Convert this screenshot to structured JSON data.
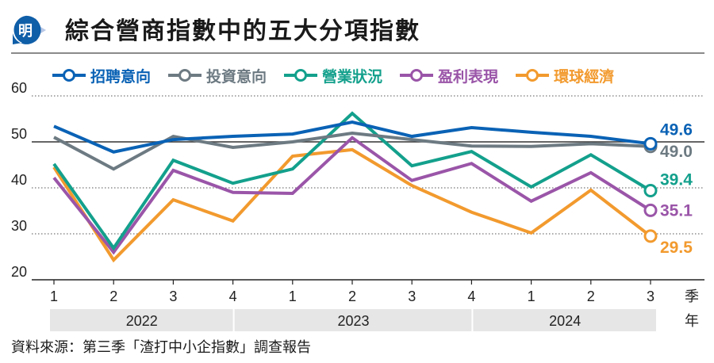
{
  "header": {
    "logo_char": "明",
    "title": "綜合營商指數中的五大分項指數"
  },
  "colors": {
    "logo_blue": "#0f5ea8",
    "logo_light": "#b9c8e6",
    "zero_line": "#333333",
    "grid": "#555555",
    "year_band": "#e6e6e6"
  },
  "chart_data": {
    "type": "line",
    "title": "綜合營商指數中的五大分項指數",
    "xlabel": "季",
    "xlabel_year": "年",
    "ylabel": "",
    "ylim": [
      20,
      60
    ],
    "yticks": [
      20,
      30,
      40,
      50,
      60
    ],
    "reference_line": 50,
    "grid": true,
    "legend_position": "top",
    "x": [
      "1",
      "2",
      "3",
      "4",
      "1",
      "2",
      "3",
      "4",
      "1",
      "2",
      "3"
    ],
    "years": [
      {
        "label": "2022",
        "quarters": 4
      },
      {
        "label": "2023",
        "quarters": 4
      },
      {
        "label": "2024",
        "quarters": 3
      }
    ],
    "series": [
      {
        "name": "招聘意向",
        "color": "#0a62b5",
        "values": [
          53.4,
          47.8,
          50.5,
          51.2,
          51.7,
          54.3,
          51.2,
          53.1,
          52.1,
          51.2,
          49.6
        ],
        "end_label": "49.6"
      },
      {
        "name": "投資意向",
        "color": "#6d7a82",
        "values": [
          51.0,
          44.1,
          51.2,
          48.8,
          50.0,
          51.9,
          50.5,
          49.1,
          49.0,
          49.6,
          49.0
        ],
        "end_label": "49.0"
      },
      {
        "name": "營業狀況",
        "color": "#13a08c",
        "values": [
          45.2,
          26.9,
          46.0,
          41.0,
          44.1,
          56.2,
          44.8,
          47.9,
          40.2,
          47.2,
          39.4
        ],
        "end_label": "39.4"
      },
      {
        "name": "盈利表現",
        "color": "#9a55a8",
        "values": [
          42.2,
          26.0,
          43.8,
          39.0,
          38.8,
          50.9,
          41.6,
          45.3,
          37.1,
          43.3,
          35.1
        ],
        "end_label": "35.1"
      },
      {
        "name": "環球經濟",
        "color": "#f29a2e",
        "values": [
          44.5,
          24.3,
          37.4,
          32.8,
          46.9,
          48.3,
          40.5,
          34.7,
          30.2,
          39.5,
          29.5
        ],
        "end_label": "29.5"
      }
    ]
  },
  "footer": {
    "source": "資料來源：第三季「渣打中小企指數」調查報告"
  }
}
